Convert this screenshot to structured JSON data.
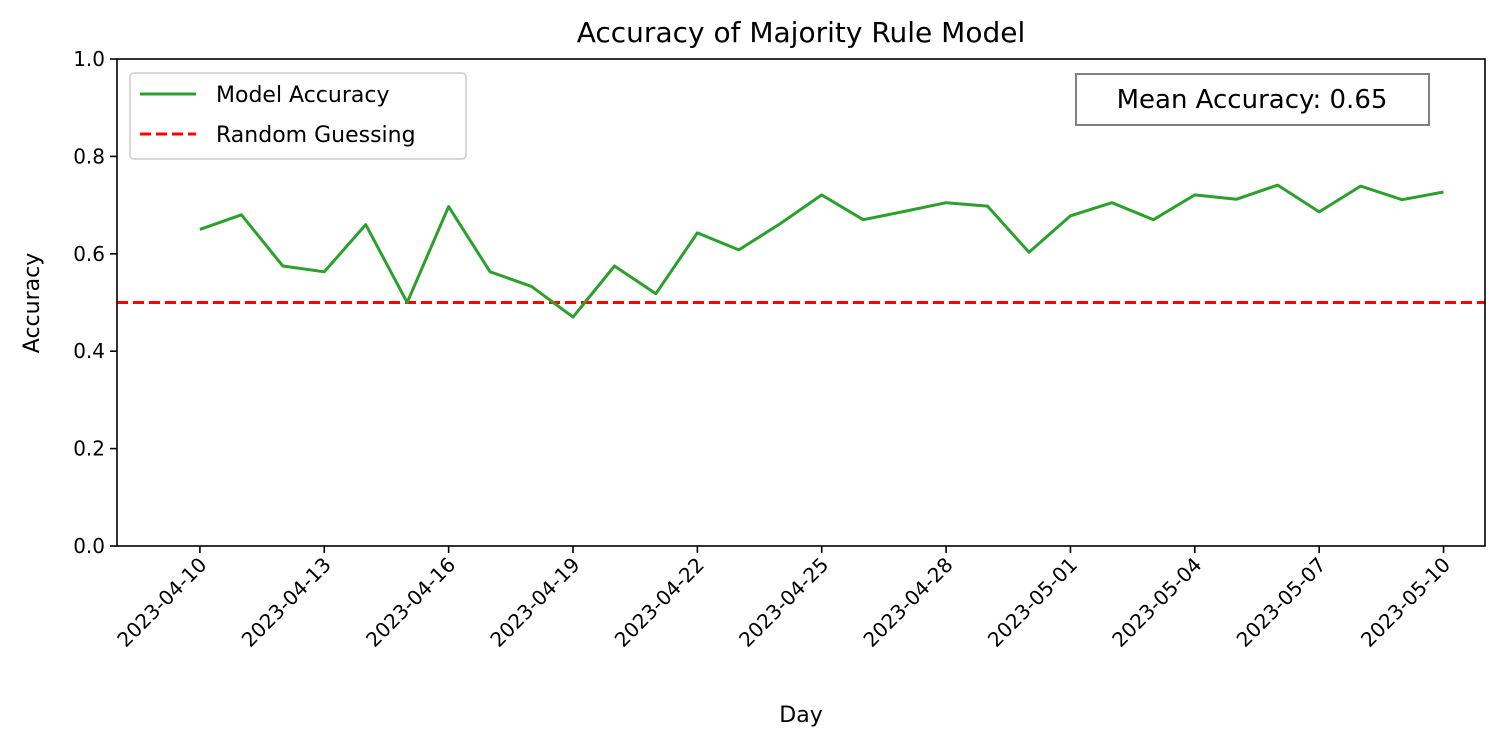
{
  "chart_data": {
    "type": "line",
    "title": "Accuracy of Majority Rule Model",
    "xlabel": "Day",
    "ylabel": "Accuracy",
    "ylim": [
      0,
      1
    ],
    "xlim": [
      "2023-04-08",
      "2023-05-11"
    ],
    "yticks": [
      "0.0",
      "0.2",
      "0.4",
      "0.6",
      "0.8",
      "1.0"
    ],
    "xticks": [
      "2023-04-10",
      "2023-04-13",
      "2023-04-16",
      "2023-04-19",
      "2023-04-22",
      "2023-04-25",
      "2023-04-28",
      "2023-05-01",
      "2023-05-04",
      "2023-05-07",
      "2023-05-10"
    ],
    "grid": false,
    "legend_position": "top-left",
    "series": [
      {
        "name": "Model Accuracy",
        "color": "#2ca02c",
        "style": "solid",
        "x": [
          "2023-04-10",
          "2023-04-11",
          "2023-04-12",
          "2023-04-13",
          "2023-04-14",
          "2023-04-15",
          "2023-04-16",
          "2023-04-17",
          "2023-04-18",
          "2023-04-19",
          "2023-04-20",
          "2023-04-21",
          "2023-04-22",
          "2023-04-23",
          "2023-04-24",
          "2023-04-25",
          "2023-04-26",
          "2023-04-27",
          "2023-04-28",
          "2023-04-29",
          "2023-04-30",
          "2023-05-01",
          "2023-05-02",
          "2023-05-03",
          "2023-05-04",
          "2023-05-05",
          "2023-05-06",
          "2023-05-07",
          "2023-05-08",
          "2023-05-09",
          "2023-05-10"
        ],
        "values": [
          0.65,
          0.68,
          0.575,
          0.563,
          0.66,
          0.5,
          0.697,
          0.563,
          0.533,
          0.47,
          0.575,
          0.518,
          0.643,
          0.608,
          0.662,
          0.721,
          0.67,
          0.687,
          0.705,
          0.698,
          0.603,
          0.678,
          0.705,
          0.67,
          0.721,
          0.712,
          0.741,
          0.686,
          0.739,
          0.711,
          0.727
        ]
      },
      {
        "name": "Random Guessing",
        "color": "#ff0000",
        "style": "dashed",
        "hline": 0.5
      }
    ],
    "annotation": {
      "text": "Mean Accuracy: 0.65",
      "position": "top-right"
    }
  }
}
